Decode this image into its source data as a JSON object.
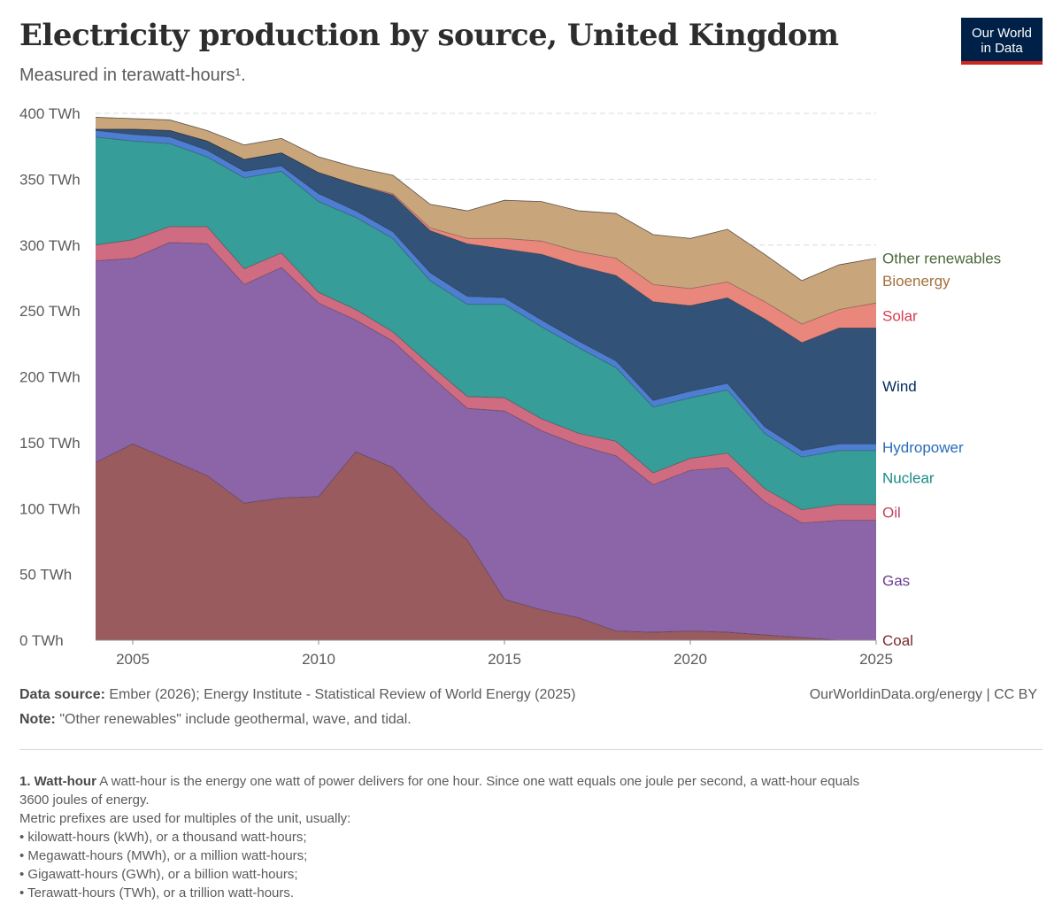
{
  "header": {
    "title": "Electricity production by source, United Kingdom",
    "subtitle": "Measured in terawatt-hours¹.",
    "logo_line1": "Our World",
    "logo_line2": "in Data"
  },
  "chart_data": {
    "type": "area",
    "stacked": true,
    "title": "Electricity production by source, United Kingdom",
    "ylabel": "",
    "xlabel": "",
    "ylim": [
      0,
      400
    ],
    "xlim": [
      2004,
      2025
    ],
    "y_ticks": [
      0,
      50,
      100,
      150,
      200,
      250,
      300,
      350,
      400
    ],
    "y_tick_labels": [
      "0 TWh",
      "50 TWh",
      "100 TWh",
      "150 TWh",
      "200 TWh",
      "250 TWh",
      "300 TWh",
      "350 TWh",
      "400 TWh"
    ],
    "x_ticks": [
      2005,
      2010,
      2015,
      2020,
      2025
    ],
    "x_tick_labels": [
      "2005",
      "2010",
      "2015",
      "2020",
      "2025"
    ],
    "grid": "horizontal dashed",
    "legend": "right, inline labels",
    "x": [
      2004,
      2005,
      2006,
      2007,
      2008,
      2009,
      2010,
      2011,
      2012,
      2013,
      2014,
      2015,
      2016,
      2017,
      2018,
      2019,
      2020,
      2021,
      2022,
      2023,
      2024,
      2025
    ],
    "series": [
      {
        "name": "Coal",
        "color": "#9a5b5f",
        "label_color": "#7a2b31",
        "values": [
          135,
          149,
          137,
          125,
          104,
          108,
          109,
          143,
          131,
          101,
          76,
          31,
          23,
          17,
          7,
          6,
          7,
          6,
          4,
          2,
          0,
          0
        ]
      },
      {
        "name": "Gas",
        "color": "#8b65a8",
        "label_color": "#6d3e91",
        "values": [
          153,
          141,
          165,
          176,
          166,
          175,
          147,
          100,
          96,
          100,
          100,
          143,
          136,
          131,
          133,
          112,
          122,
          125,
          101,
          87,
          91,
          91
        ]
      },
      {
        "name": "Oil",
        "color": "#cf6c82",
        "label_color": "#c1445f",
        "values": [
          12,
          14,
          12,
          13,
          12,
          11,
          8,
          8,
          7,
          8,
          9,
          10,
          9,
          9,
          11,
          9,
          9,
          11,
          10,
          10,
          12,
          12
        ]
      },
      {
        "name": "Nuclear",
        "color": "#369d98",
        "label_color": "#188a86",
        "values": [
          82,
          75,
          63,
          53,
          69,
          62,
          69,
          70,
          71,
          64,
          70,
          71,
          70,
          65,
          56,
          50,
          46,
          48,
          42,
          40,
          41,
          41
        ]
      },
      {
        "name": "Hydropower",
        "color": "#4d7ed2",
        "label_color": "#286bbb",
        "values": [
          5,
          5,
          5,
          5,
          5,
          4,
          6,
          5,
          5,
          6,
          6,
          5,
          5,
          5,
          5,
          5,
          5,
          5,
          5,
          5,
          5,
          5
        ]
      },
      {
        "name": "Wind",
        "color": "#335277",
        "label_color": "#00295b",
        "values": [
          1,
          4,
          5,
          7,
          9,
          10,
          16,
          20,
          28,
          32,
          40,
          37,
          50,
          57,
          65,
          75,
          65,
          65,
          82,
          82,
          88,
          88
        ]
      },
      {
        "name": "Solar",
        "color": "#e9877c",
        "label_color": "#d73c50",
        "values": [
          0,
          0,
          0,
          0,
          0,
          0,
          0,
          0,
          1,
          2,
          4,
          8,
          10,
          11,
          13,
          13,
          13,
          12,
          13,
          14,
          14,
          19
        ]
      },
      {
        "name": "Bioenergy",
        "color": "#c9a57c",
        "label_color": "#a2703e",
        "values": [
          9,
          8,
          8,
          8,
          11,
          11,
          12,
          13,
          14,
          18,
          21,
          29,
          30,
          31,
          34,
          38,
          38,
          40,
          36,
          33,
          34,
          34
        ]
      },
      {
        "name": "Other renewables",
        "color": "#6a9a57",
        "label_color": "#4c6a3a",
        "values": [
          0,
          0,
          0,
          0,
          0,
          0,
          0,
          0,
          0,
          0,
          0,
          0,
          0,
          0,
          0,
          0,
          0,
          0,
          0,
          0,
          0,
          0
        ]
      }
    ]
  },
  "footer": {
    "source_label": "Data source:",
    "source_text": " Ember (2026); Energy Institute - Statistical Review of World Energy (2025)",
    "attribution": "OurWorldinData.org/energy | CC BY",
    "note_label": "Note:",
    "note_text": " \"Other renewables\" include geothermal, wave, and tidal."
  },
  "footnote": {
    "term": "1. Watt-hour",
    "definition": " A watt-hour is the energy one watt of power delivers for one hour. Since one watt equals one joule per second, a watt-hour equals",
    "definition_cont": "3600 joules of energy.",
    "prefix_intro": "Metric prefixes are used for multiples of the unit, usually:",
    "items": [
      "• kilowatt-hours (kWh), or a thousand watt-hours;",
      "• Megawatt-hours (MWh), or a million watt-hours;",
      "• Gigawatt-hours (GWh), or a billion watt-hours;",
      "• Terawatt-hours (TWh), or a trillion watt-hours."
    ]
  }
}
